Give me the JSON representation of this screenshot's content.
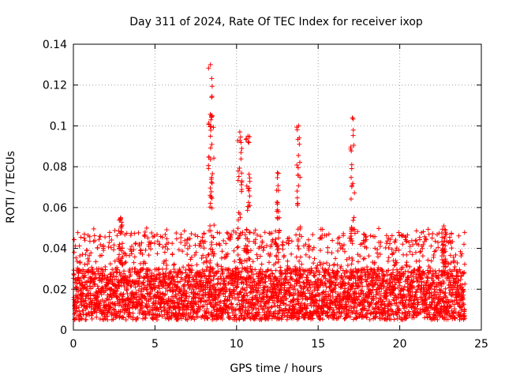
{
  "chart_data": {
    "type": "scatter",
    "title": "Day 311 of 2024, Rate Of TEC Index for receiver ixop",
    "xlabel": "GPS time / hours",
    "ylabel": "ROTI / TECUs",
    "xlim": [
      0,
      25
    ],
    "ylim": [
      0,
      0.14
    ],
    "x_ticks": [
      0,
      5,
      10,
      15,
      20,
      25
    ],
    "x_tick_labels": [
      "0",
      "5",
      "10",
      "15",
      "20",
      "25"
    ],
    "y_ticks": [
      0,
      0.02,
      0.04,
      0.06,
      0.08,
      0.1,
      0.12,
      0.14
    ],
    "y_tick_labels": [
      "0",
      "0.02",
      "0.04",
      "0.06",
      "0.08",
      "0.1",
      "0.12",
      "0.14"
    ],
    "grid": true,
    "marker": "+",
    "color": "#ff0000",
    "series": [
      {
        "name": "ROTI",
        "x_range_hours": [
          0,
          24
        ],
        "baseline_band": [
          0.005,
          0.03
        ],
        "peaks": [
          {
            "x": 8.4,
            "y": 0.13
          },
          {
            "x": 8.5,
            "y": 0.105
          },
          {
            "x": 10.2,
            "y": 0.097
          },
          {
            "x": 10.7,
            "y": 0.095
          },
          {
            "x": 12.5,
            "y": 0.077
          },
          {
            "x": 13.8,
            "y": 0.1
          },
          {
            "x": 17.1,
            "y": 0.104
          },
          {
            "x": 2.9,
            "y": 0.055
          },
          {
            "x": 22.7,
            "y": 0.051
          }
        ]
      }
    ]
  }
}
